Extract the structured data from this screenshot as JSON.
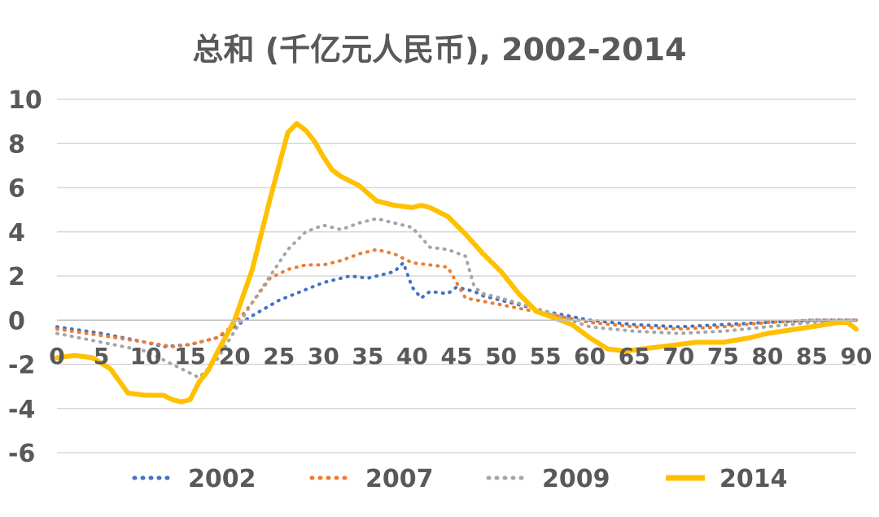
{
  "chart_data": {
    "type": "line",
    "title": "总和 (千亿元人民币), 2002-2014",
    "xlabel": "",
    "ylabel": "",
    "xlim": [
      0,
      90
    ],
    "ylim": [
      -6,
      10
    ],
    "x_ticks": [
      "0",
      "5",
      "10",
      "15",
      "20",
      "25",
      "30",
      "35",
      "40",
      "45",
      "50",
      "55",
      "60",
      "65",
      "70",
      "75",
      "80",
      "85",
      "90"
    ],
    "y_ticks": [
      "10",
      "8",
      "6",
      "4",
      "2",
      "0",
      "-2",
      "-4",
      "-6"
    ],
    "grid": true,
    "legend_position": "bottom",
    "series": [
      {
        "name": "2002",
        "color": "#4472C4",
        "style": "dotted",
        "x": [
          0,
          5,
          10,
          12,
          15,
          18,
          20,
          22,
          25,
          30,
          33,
          35,
          38,
          39,
          40,
          41,
          42,
          44,
          45,
          46,
          47,
          48,
          50,
          55,
          60,
          65,
          70,
          75,
          80,
          85,
          90
        ],
        "y": [
          -0.3,
          -0.6,
          -1.0,
          -1.2,
          -1.1,
          -0.8,
          -0.3,
          0.2,
          0.9,
          1.7,
          2.0,
          1.9,
          2.2,
          2.6,
          1.5,
          1.0,
          1.3,
          1.2,
          1.5,
          1.4,
          1.3,
          1.1,
          0.9,
          0.4,
          0.0,
          -0.2,
          -0.3,
          -0.2,
          -0.1,
          0.0,
          0.0
        ]
      },
      {
        "name": "2007",
        "color": "#ED7D31",
        "style": "dotted",
        "x": [
          0,
          5,
          10,
          13,
          15,
          18,
          20,
          22,
          24,
          26,
          28,
          30,
          32,
          34,
          36,
          38,
          40,
          42,
          44,
          46,
          50,
          55,
          60,
          65,
          70,
          75,
          80,
          85,
          90
        ],
        "y": [
          -0.4,
          -0.7,
          -1.0,
          -1.2,
          -1.1,
          -0.8,
          -0.2,
          0.8,
          1.9,
          2.3,
          2.5,
          2.5,
          2.7,
          3.0,
          3.2,
          3.0,
          2.6,
          2.5,
          2.4,
          1.0,
          0.7,
          0.3,
          -0.1,
          -0.3,
          -0.4,
          -0.3,
          -0.1,
          0.0,
          0.0
        ]
      },
      {
        "name": "2009",
        "color": "#A5A5A5",
        "style": "dotted",
        "x": [
          0,
          5,
          10,
          12,
          14,
          16,
          18,
          20,
          22,
          24,
          26,
          28,
          30,
          32,
          34,
          36,
          38,
          40,
          42,
          44,
          46,
          47,
          48,
          50,
          55,
          60,
          65,
          70,
          75,
          80,
          85,
          90
        ],
        "y": [
          -0.6,
          -1.0,
          -1.4,
          -1.8,
          -2.2,
          -2.6,
          -1.8,
          -0.5,
          0.8,
          2.0,
          3.2,
          4.0,
          4.3,
          4.1,
          4.4,
          4.6,
          4.4,
          4.2,
          3.3,
          3.2,
          2.9,
          1.5,
          1.2,
          1.0,
          0.4,
          -0.3,
          -0.5,
          -0.6,
          -0.5,
          -0.3,
          -0.1,
          0.0
        ]
      },
      {
        "name": "2014",
        "color": "#FFC000",
        "style": "solid",
        "x": [
          0,
          2,
          4,
          6,
          8,
          10,
          12,
          13,
          14,
          15,
          16,
          17,
          18,
          20,
          22,
          24,
          26,
          27,
          28,
          29,
          30,
          31,
          32,
          34,
          36,
          38,
          40,
          41,
          42,
          44,
          46,
          48,
          50,
          52,
          54,
          56,
          58,
          60,
          62,
          64,
          66,
          68,
          70,
          72,
          75,
          78,
          80,
          85,
          88,
          89,
          90
        ],
        "y": [
          -1.7,
          -1.6,
          -1.7,
          -2.2,
          -3.3,
          -3.4,
          -3.4,
          -3.6,
          -3.7,
          -3.6,
          -2.8,
          -2.3,
          -1.5,
          0.0,
          2.3,
          5.5,
          8.5,
          8.9,
          8.6,
          8.1,
          7.4,
          6.8,
          6.5,
          6.1,
          5.4,
          5.2,
          5.1,
          5.2,
          5.1,
          4.7,
          3.9,
          3.0,
          2.2,
          1.2,
          0.4,
          0.1,
          -0.2,
          -0.8,
          -1.3,
          -1.4,
          -1.3,
          -1.2,
          -1.1,
          -1.0,
          -1.0,
          -0.8,
          -0.6,
          -0.3,
          -0.1,
          -0.1,
          -0.4
        ]
      }
    ]
  }
}
